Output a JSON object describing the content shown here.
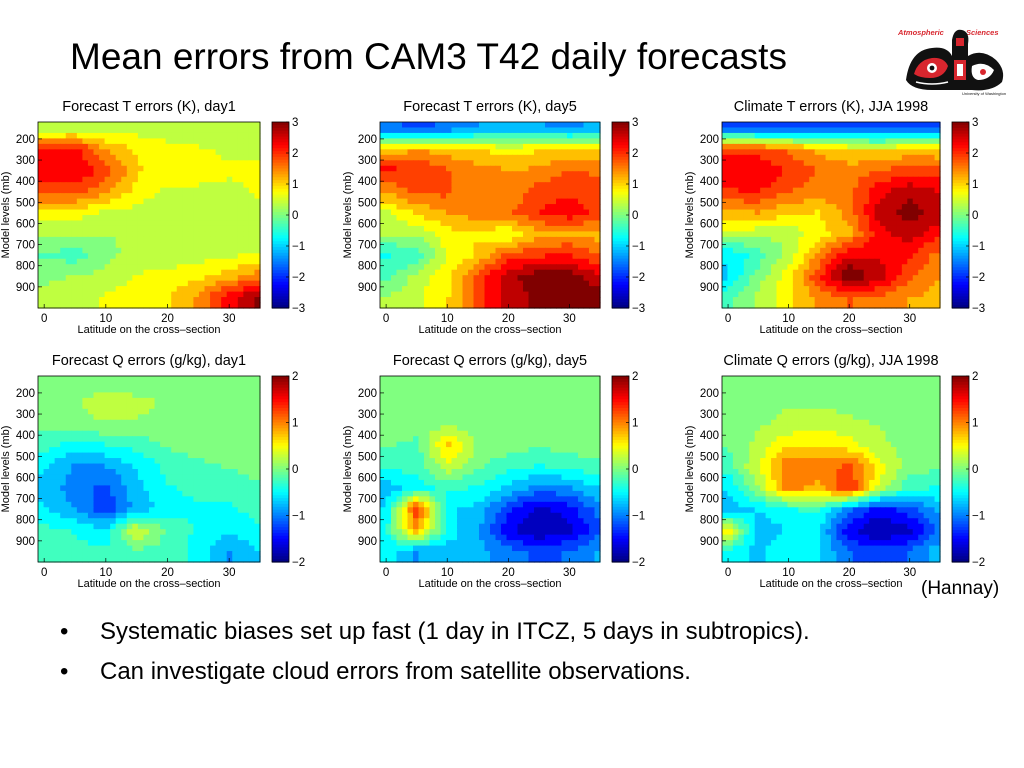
{
  "slide": {
    "title": "Mean errors from CAM3 T42 daily forecasts",
    "credit": "(Hannay)",
    "bullets": [
      "Systematic biases set up fast (1 day in ITCZ, 5 days in subtropics).",
      "Can investigate cloud errors from satellite observations."
    ]
  },
  "logo": {
    "text_top_left": "Atmospheric",
    "text_top_right": "Sciences",
    "text_bottom": "University of Washington",
    "colors": {
      "red": "#d8262e",
      "black": "#111111",
      "white": "#ffffff"
    }
  },
  "chart_data": [
    {
      "type": "heatmap",
      "title": "Forecast T errors (K), day1",
      "xlabel": "Latitude on the cross–section",
      "ylabel": "Model levels (mb)",
      "x_ticks": [
        "0",
        "10",
        "20",
        "30"
      ],
      "y_ticks": [
        "200",
        "300",
        "400",
        "500",
        "600",
        "700",
        "800",
        "900"
      ],
      "xlim": [
        -1,
        35
      ],
      "ylim": [
        1000,
        120
      ],
      "colorbar": {
        "ticks": [
          "3",
          "2",
          "1",
          "0",
          "−1",
          "−2",
          "−3"
        ],
        "range": [
          -3,
          3
        ]
      },
      "x": [
        0,
        5,
        10,
        15,
        20,
        25,
        30,
        35
      ],
      "y": [
        150,
        250,
        350,
        450,
        550,
        650,
        750,
        850,
        950
      ],
      "z": [
        [
          0.2,
          0.3,
          0.4,
          0.4,
          0.3,
          0.3,
          0.3,
          0.3
        ],
        [
          2.1,
          2.2,
          1.3,
          0.9,
          0.7,
          0.6,
          0.5,
          0.5
        ],
        [
          2.3,
          2.4,
          1.9,
          1.0,
          0.7,
          0.7,
          0.6,
          0.6
        ],
        [
          1.9,
          1.9,
          1.4,
          0.8,
          0.5,
          0.5,
          0.5,
          0.6
        ],
        [
          0.8,
          0.7,
          0.5,
          0.4,
          0.3,
          0.3,
          0.4,
          0.5
        ],
        [
          0.2,
          0.3,
          0.2,
          0.2,
          0.3,
          0.3,
          0.4,
          0.4
        ],
        [
          -0.2,
          -0.4,
          0.1,
          0.3,
          0.3,
          0.4,
          0.5,
          0.6
        ],
        [
          0.1,
          0.2,
          0.3,
          0.6,
          0.7,
          0.8,
          1.1,
          1.6
        ],
        [
          0.3,
          0.4,
          0.6,
          0.8,
          0.9,
          1.4,
          2.3,
          3.0
        ]
      ]
    },
    {
      "type": "heatmap",
      "title": "Forecast T errors (K), day5",
      "xlabel": "Latitude on the cross–section",
      "ylabel": "Model levels (mb)",
      "x_ticks": [
        "0",
        "10",
        "20",
        "30"
      ],
      "y_ticks": [
        "200",
        "300",
        "400",
        "500",
        "600",
        "700",
        "800",
        "900"
      ],
      "xlim": [
        -1,
        35
      ],
      "ylim": [
        1000,
        120
      ],
      "colorbar": {
        "ticks": [
          "3",
          "2",
          "1",
          "0",
          "−1",
          "−2",
          "−3"
        ],
        "range": [
          -3,
          3
        ]
      },
      "x": [
        0,
        5,
        10,
        15,
        20,
        25,
        30,
        35
      ],
      "y": [
        150,
        250,
        350,
        450,
        550,
        650,
        750,
        850,
        950
      ],
      "z": [
        [
          -1.6,
          -1.8,
          -1.6,
          -1.3,
          -1.2,
          -1.3,
          -1.4,
          -1.2
        ],
        [
          1.0,
          1.3,
          1.1,
          0.9,
          0.8,
          0.9,
          1.0,
          1.0
        ],
        [
          2.2,
          2.1,
          1.7,
          1.5,
          1.3,
          1.4,
          1.7,
          1.6
        ],
        [
          1.3,
          1.8,
          1.8,
          1.3,
          1.4,
          1.9,
          2.0,
          1.9
        ],
        [
          0.5,
          1.0,
          1.3,
          1.5,
          1.6,
          2.1,
          2.3,
          1.9
        ],
        [
          0.2,
          0.3,
          0.8,
          0.9,
          0.6,
          1.2,
          1.3,
          1.1
        ],
        [
          -0.6,
          -0.5,
          0.6,
          1.0,
          1.8,
          2.0,
          2.1,
          1.7
        ],
        [
          -0.3,
          0.3,
          0.8,
          1.8,
          2.7,
          3.1,
          3.0,
          2.5
        ],
        [
          0.2,
          0.5,
          0.9,
          1.9,
          2.6,
          2.9,
          3.2,
          3.0
        ]
      ]
    },
    {
      "type": "heatmap",
      "title": "Climate T errors (K), JJA 1998",
      "xlabel": "Latitude on the cross–section",
      "ylabel": "Model levels (mb)",
      "x_ticks": [
        "0",
        "10",
        "20",
        "30"
      ],
      "y_ticks": [
        "200",
        "300",
        "400",
        "500",
        "600",
        "700",
        "800",
        "900"
      ],
      "xlim": [
        -1,
        35
      ],
      "ylim": [
        1000,
        120
      ],
      "colorbar": {
        "ticks": [
          "3",
          "2",
          "1",
          "0",
          "−1",
          "−2",
          "−3"
        ],
        "range": [
          -3,
          3
        ]
      },
      "x": [
        0,
        5,
        10,
        15,
        20,
        25,
        30,
        35
      ],
      "y": [
        150,
        250,
        350,
        450,
        550,
        650,
        750,
        850,
        950
      ],
      "z": [
        [
          -1.7,
          -1.9,
          -1.9,
          -1.8,
          -1.8,
          -1.9,
          -1.9,
          -1.8
        ],
        [
          1.8,
          1.9,
          1.6,
          1.2,
          0.9,
          0.9,
          1.0,
          1.0
        ],
        [
          2.5,
          2.4,
          2.0,
          1.7,
          1.5,
          1.7,
          1.9,
          1.8
        ],
        [
          2.0,
          2.1,
          1.7,
          1.5,
          1.6,
          2.3,
          2.7,
          2.4
        ],
        [
          1.2,
          1.3,
          1.0,
          0.9,
          1.5,
          2.6,
          3.0,
          2.6
        ],
        [
          0.4,
          0.3,
          0.3,
          0.8,
          1.2,
          2.3,
          2.6,
          2.2
        ],
        [
          -0.9,
          -0.4,
          0.3,
          1.4,
          2.4,
          2.4,
          2.1,
          1.5
        ],
        [
          -1.0,
          0.0,
          0.8,
          2.0,
          3.2,
          2.6,
          1.8,
          1.3
        ],
        [
          -0.3,
          0.3,
          0.8,
          1.4,
          1.7,
          1.6,
          1.3,
          1.2
        ]
      ]
    },
    {
      "type": "heatmap",
      "title": "Forecast Q errors (g/kg), day1",
      "xlabel": "Latitude on the cross–section",
      "ylabel": "Model levels (mb)",
      "x_ticks": [
        "0",
        "10",
        "20",
        "30"
      ],
      "y_ticks": [
        "200",
        "300",
        "400",
        "500",
        "600",
        "700",
        "800",
        "900"
      ],
      "xlim": [
        -1,
        35
      ],
      "ylim": [
        1000,
        120
      ],
      "colorbar": {
        "ticks": [
          "2",
          "1",
          "0",
          "−1",
          "−2"
        ],
        "range": [
          -2,
          2
        ]
      },
      "x": [
        0,
        5,
        10,
        15,
        20,
        25,
        30,
        35
      ],
      "y": [
        150,
        250,
        350,
        450,
        550,
        650,
        750,
        850,
        950
      ],
      "z": [
        [
          0.0,
          0.0,
          0.0,
          0.0,
          0.0,
          0.0,
          0.0,
          0.0
        ],
        [
          0.0,
          0.1,
          0.3,
          0.2,
          0.1,
          0.0,
          0.0,
          0.0
        ],
        [
          0.0,
          0.0,
          0.1,
          0.1,
          0.0,
          0.0,
          0.0,
          0.0
        ],
        [
          -0.3,
          -0.5,
          -0.4,
          -0.3,
          -0.1,
          0.0,
          0.0,
          0.0
        ],
        [
          -0.6,
          -0.9,
          -0.9,
          -0.6,
          -0.3,
          -0.2,
          -0.1,
          0.0
        ],
        [
          -0.7,
          -1.0,
          -1.2,
          -0.7,
          -0.4,
          -0.3,
          -0.3,
          -0.2
        ],
        [
          -0.6,
          -0.9,
          -1.3,
          -0.8,
          -0.5,
          -0.4,
          -0.4,
          -0.3
        ],
        [
          -0.3,
          -0.4,
          -0.6,
          0.4,
          -0.2,
          -0.4,
          -0.6,
          -0.4
        ],
        [
          -0.2,
          -0.3,
          -0.3,
          -0.2,
          -0.2,
          -0.5,
          -0.9,
          -0.6
        ]
      ]
    },
    {
      "type": "heatmap",
      "title": "Forecast Q errors (g/kg), day5",
      "xlabel": "Latitude on the cross–section",
      "ylabel": "Model levels (mb)",
      "x_ticks": [
        "0",
        "10",
        "20",
        "30"
      ],
      "y_ticks": [
        "200",
        "300",
        "400",
        "500",
        "600",
        "700",
        "800",
        "900"
      ],
      "xlim": [
        -1,
        35
      ],
      "ylim": [
        1000,
        120
      ],
      "colorbar": {
        "ticks": [
          "2",
          "1",
          "0",
          "−1",
          "−2"
        ],
        "range": [
          -2,
          2
        ]
      },
      "x": [
        0,
        5,
        10,
        15,
        20,
        25,
        30,
        35
      ],
      "y": [
        150,
        250,
        350,
        450,
        550,
        650,
        750,
        850,
        950
      ],
      "z": [
        [
          0.0,
          0.0,
          0.0,
          0.0,
          0.0,
          0.0,
          0.0,
          0.0
        ],
        [
          0.0,
          0.0,
          0.0,
          0.0,
          0.0,
          0.0,
          0.0,
          0.0
        ],
        [
          0.0,
          0.0,
          0.1,
          0.0,
          0.0,
          0.0,
          0.0,
          0.0
        ],
        [
          -0.1,
          -0.2,
          0.7,
          0.1,
          0.0,
          -0.1,
          0.0,
          0.0
        ],
        [
          -0.3,
          -0.3,
          0.3,
          -0.1,
          -0.3,
          -0.4,
          -0.3,
          -0.2
        ],
        [
          -0.8,
          -0.5,
          -0.3,
          -0.4,
          -0.7,
          -1.0,
          -0.9,
          -0.6
        ],
        [
          -0.6,
          1.4,
          -0.6,
          -0.7,
          -1.3,
          -1.7,
          -1.5,
          -1.0
        ],
        [
          -0.4,
          0.9,
          -0.5,
          -0.8,
          -1.6,
          -1.9,
          -1.7,
          -1.2
        ],
        [
          -0.5,
          -0.9,
          -0.7,
          -0.8,
          -1.0,
          -1.2,
          -1.1,
          -0.8
        ]
      ]
    },
    {
      "type": "heatmap",
      "title": "Climate Q errors (g/kg), JJA 1998",
      "xlabel": "Latitude on the cross–section",
      "ylabel": "Model levels (mb)",
      "x_ticks": [
        "0",
        "10",
        "20",
        "30"
      ],
      "y_ticks": [
        "200",
        "300",
        "400",
        "500",
        "600",
        "700",
        "800",
        "900"
      ],
      "xlim": [
        -1,
        35
      ],
      "ylim": [
        1000,
        120
      ],
      "colorbar": {
        "ticks": [
          "2",
          "1",
          "0",
          "−1",
          "−2"
        ],
        "range": [
          -2,
          2
        ]
      },
      "x": [
        0,
        5,
        10,
        15,
        20,
        25,
        30,
        35
      ],
      "y": [
        150,
        250,
        350,
        450,
        550,
        650,
        750,
        850,
        950
      ],
      "z": [
        [
          0.0,
          0.0,
          0.0,
          0.0,
          0.0,
          0.0,
          0.0,
          0.0
        ],
        [
          0.0,
          0.0,
          0.1,
          0.1,
          0.0,
          0.0,
          0.0,
          0.0
        ],
        [
          0.0,
          0.1,
          0.2,
          0.3,
          0.2,
          0.1,
          0.0,
          0.0
        ],
        [
          -0.1,
          0.2,
          0.6,
          0.6,
          0.5,
          0.2,
          0.0,
          0.0
        ],
        [
          -0.3,
          0.4,
          1.1,
          1.0,
          1.2,
          0.5,
          0.0,
          -0.1
        ],
        [
          -0.6,
          0.1,
          1.0,
          0.8,
          1.4,
          0.3,
          -0.3,
          -0.4
        ],
        [
          -0.8,
          -0.6,
          -0.4,
          -0.3,
          -1.0,
          -1.5,
          -1.2,
          -0.8
        ],
        [
          0.6,
          -0.8,
          -0.6,
          -0.6,
          -1.6,
          -1.9,
          -1.7,
          -1.1
        ],
        [
          -0.5,
          -0.7,
          -0.4,
          -0.6,
          -1.1,
          -1.3,
          -1.1,
          -0.7
        ]
      ]
    }
  ]
}
